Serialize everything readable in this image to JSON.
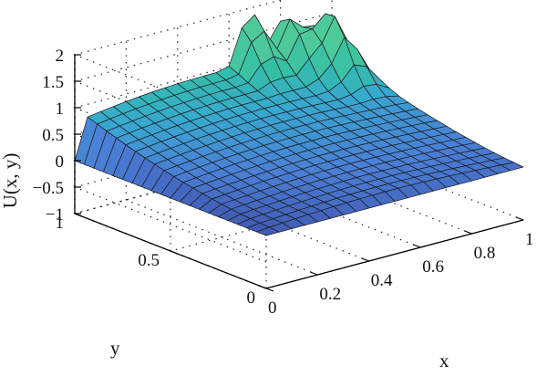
{
  "chart_data": {
    "type": "surface",
    "title": "",
    "xlabel": "x",
    "ylabel": "y",
    "zlabel": "U(x, y)",
    "xlim": [
      0,
      1
    ],
    "ylim": [
      0,
      1
    ],
    "zlim": [
      -1,
      2
    ],
    "x_ticks": [
      "0",
      "0.2",
      "0.4",
      "0.6",
      "0.8",
      "1"
    ],
    "x_tick_values": [
      0,
      0.2,
      0.4,
      0.6,
      0.8,
      1
    ],
    "y_ticks": [
      "0",
      "0.5",
      "1"
    ],
    "y_tick_values": [
      0,
      0.5,
      1
    ],
    "z_ticks": [
      "−1",
      "−0.5",
      "0",
      "0.5",
      "1",
      "1.5",
      "2"
    ],
    "z_tick_values": [
      -1,
      -0.5,
      0,
      0.5,
      1,
      1.5,
      2
    ],
    "grid": true,
    "colormap": [
      "#3e4fa8",
      "#4a7fd6",
      "#38a8d0",
      "#33bfa6",
      "#4ec99a"
    ],
    "surface": {
      "x": [
        0,
        0.05,
        0.1,
        0.15,
        0.2,
        0.25,
        0.3,
        0.35,
        0.4,
        0.45,
        0.5,
        0.55,
        0.6,
        0.65,
        0.7,
        0.75,
        0.8,
        0.85,
        0.9,
        0.95,
        1
      ],
      "y": [
        0,
        0.05,
        0.1,
        0.15,
        0.2,
        0.25,
        0.3,
        0.35,
        0.4,
        0.45,
        0.5,
        0.55,
        0.6,
        0.65,
        0.7,
        0.75,
        0.8,
        0.85,
        0.9,
        0.95,
        1
      ],
      "shape": "U rises from 0 near the x=0 and y=0 edges to about 0.75 along the y=1 edge, with peaks along the far corner",
      "peaks": [
        {
          "x": 0.68,
          "y": 1.0,
          "z": 2.0
        },
        {
          "x": 0.8,
          "y": 0.95,
          "z": 1.75
        },
        {
          "x": 0.88,
          "y": 0.9,
          "z": 1.55
        },
        {
          "x": 0.9,
          "y": 0.84,
          "z": 1.45
        },
        {
          "x": 0.95,
          "y": 0.82,
          "z": 1.3
        }
      ]
    }
  }
}
